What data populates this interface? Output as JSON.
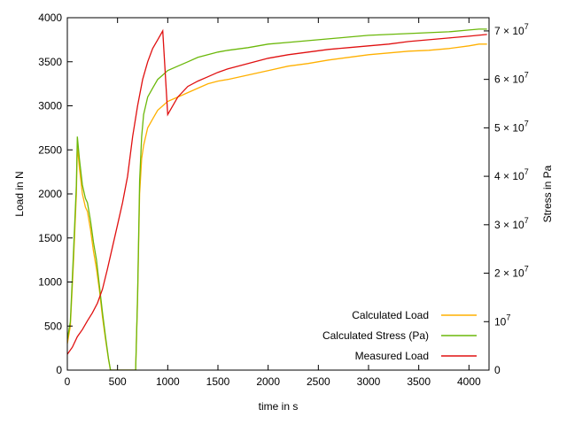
{
  "chart_data": {
    "type": "line",
    "xlabel": "time in s",
    "ylabel": "Load in N",
    "y2label": "Stress in Pa",
    "xlim": [
      0,
      4200
    ],
    "ylim": [
      0,
      4000
    ],
    "y2lim": [
      0,
      72727272
    ],
    "xticks": [
      {
        "value": 0,
        "label": "0"
      },
      {
        "value": 500,
        "label": "500"
      },
      {
        "value": 1000,
        "label": "1000"
      },
      {
        "value": 1500,
        "label": "1500"
      },
      {
        "value": 2000,
        "label": "2000"
      },
      {
        "value": 2500,
        "label": "2500"
      },
      {
        "value": 3000,
        "label": "3000"
      },
      {
        "value": 3500,
        "label": "3500"
      },
      {
        "value": 4000,
        "label": "4000"
      }
    ],
    "yticks": [
      {
        "value": 0,
        "label": "0"
      },
      {
        "value": 500,
        "label": "500"
      },
      {
        "value": 1000,
        "label": "1000"
      },
      {
        "value": 1500,
        "label": "1500"
      },
      {
        "value": 2000,
        "label": "2000"
      },
      {
        "value": 2500,
        "label": "2500"
      },
      {
        "value": 3000,
        "label": "3000"
      },
      {
        "value": 3500,
        "label": "3500"
      },
      {
        "value": 4000,
        "label": "4000"
      }
    ],
    "y2ticks": [
      {
        "value": 0,
        "base": "0",
        "exp": ""
      },
      {
        "value": 10000000,
        "base": "10",
        "exp": "7"
      },
      {
        "value": 20000000,
        "base": "2 × 10",
        "exp": "7"
      },
      {
        "value": 30000000,
        "base": "3 × 10",
        "exp": "7"
      },
      {
        "value": 40000000,
        "base": "4 × 10",
        "exp": "7"
      },
      {
        "value": 50000000,
        "base": "5 × 10",
        "exp": "7"
      },
      {
        "value": 60000000,
        "base": "6 × 10",
        "exp": "7"
      },
      {
        "value": 70000000,
        "base": "7 × 10",
        "exp": "7"
      }
    ],
    "grid": false,
    "legend_position": "bottom-right",
    "series": [
      {
        "name": "Calculated Load",
        "color": "#ffb000",
        "axis": "y",
        "x": [
          0,
          30,
          60,
          90,
          100,
          120,
          150,
          180,
          200,
          230,
          260,
          290,
          320,
          350,
          380,
          410,
          430,
          500,
          600,
          680,
          700,
          720,
          740,
          760,
          780,
          800,
          850,
          900,
          950,
          1000,
          1100,
          1200,
          1300,
          1400,
          1500,
          1600,
          1800,
          2000,
          2200,
          2400,
          2600,
          2800,
          3000,
          3200,
          3400,
          3600,
          3800,
          4000,
          4100,
          4180
        ],
        "y": [
          300,
          500,
          1200,
          2000,
          2550,
          2300,
          2000,
          1850,
          1800,
          1600,
          1350,
          1150,
          900,
          600,
          350,
          120,
          0,
          0,
          0,
          0,
          800,
          2000,
          2400,
          2550,
          2650,
          2750,
          2850,
          2950,
          3000,
          3050,
          3100,
          3150,
          3200,
          3250,
          3280,
          3300,
          3350,
          3400,
          3450,
          3480,
          3520,
          3550,
          3580,
          3600,
          3620,
          3630,
          3650,
          3680,
          3700,
          3700
        ]
      },
      {
        "name": "Calculated Stress (Pa)",
        "color": "#6bb80a",
        "axis": "y",
        "x": [
          0,
          30,
          60,
          90,
          100,
          120,
          150,
          180,
          200,
          230,
          260,
          290,
          320,
          350,
          380,
          410,
          430,
          500,
          600,
          680,
          700,
          720,
          740,
          760,
          780,
          800,
          850,
          900,
          950,
          1000,
          1100,
          1200,
          1300,
          1400,
          1500,
          1600,
          1800,
          2000,
          2200,
          2400,
          2600,
          2800,
          3000,
          3200,
          3400,
          3600,
          3800,
          4000,
          4100,
          4180
        ],
        "y": [
          350,
          550,
          1300,
          2100,
          2650,
          2400,
          2100,
          1950,
          1900,
          1700,
          1450,
          1250,
          950,
          650,
          380,
          130,
          0,
          0,
          0,
          0,
          850,
          2150,
          2650,
          2900,
          3000,
          3100,
          3200,
          3300,
          3350,
          3400,
          3450,
          3500,
          3550,
          3580,
          3610,
          3630,
          3660,
          3700,
          3720,
          3740,
          3760,
          3780,
          3800,
          3810,
          3820,
          3830,
          3840,
          3860,
          3870,
          3870
        ]
      },
      {
        "name": "Measured Load",
        "color": "#e01010",
        "axis": "y",
        "x": [
          0,
          50,
          100,
          150,
          200,
          250,
          300,
          350,
          400,
          450,
          500,
          550,
          600,
          650,
          700,
          750,
          800,
          850,
          900,
          950,
          1000,
          1100,
          1200,
          1300,
          1400,
          1500,
          1600,
          1800,
          2000,
          2200,
          2400,
          2600,
          2800,
          3000,
          3200,
          3400,
          3600,
          3800,
          4000,
          4180
        ],
        "y": [
          180,
          260,
          380,
          460,
          560,
          650,
          760,
          920,
          1150,
          1400,
          1650,
          1900,
          2200,
          2650,
          3000,
          3300,
          3500,
          3650,
          3750,
          3850,
          2900,
          3100,
          3220,
          3280,
          3330,
          3380,
          3420,
          3480,
          3540,
          3580,
          3610,
          3640,
          3660,
          3680,
          3700,
          3730,
          3750,
          3770,
          3790,
          3810
        ]
      }
    ]
  }
}
